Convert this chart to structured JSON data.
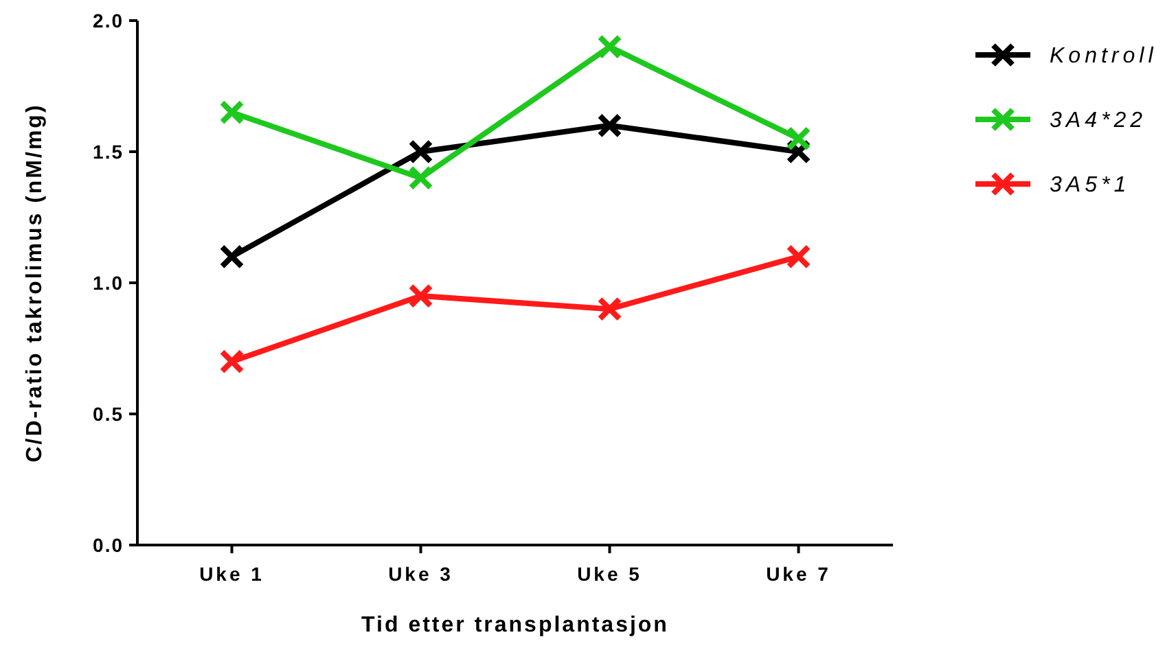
{
  "chart_data": {
    "type": "line",
    "xlabel": "Tid etter transplantasjon",
    "ylabel": "C/D-ratio takrolimus (nM/mg)",
    "categories": [
      "Uke 1",
      "Uke 3",
      "Uke 5",
      "Uke 7"
    ],
    "series": [
      {
        "name": "Kontroll",
        "color": "#000000",
        "values": [
          1.1,
          1.5,
          1.6,
          1.5
        ]
      },
      {
        "name": "3A4*22",
        "color": "#1ec81e",
        "values": [
          1.65,
          1.4,
          1.9,
          1.55
        ]
      },
      {
        "name": "3A5*1",
        "color": "#ff1a1a",
        "values": [
          0.7,
          0.95,
          0.9,
          1.1
        ]
      }
    ],
    "ylim": [
      0,
      2
    ],
    "yticks": [
      {
        "value": 0,
        "label": "0.0"
      },
      {
        "value": 0.5,
        "label": "0.5"
      },
      {
        "value": 1,
        "label": "1.0"
      },
      {
        "value": 1.5,
        "label": "1.5"
      },
      {
        "value": 2,
        "label": "2.0"
      }
    ],
    "grid": false,
    "legend": "right",
    "marker": "cross",
    "line_style": "solid"
  }
}
